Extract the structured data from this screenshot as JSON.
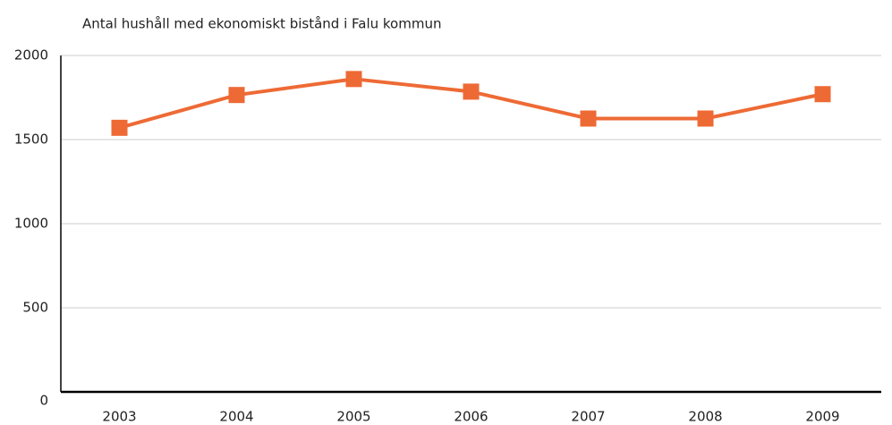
{
  "chart_data": {
    "type": "line",
    "title": "Antal hushåll med ekonomiskt bistånd i Falu kommun",
    "categories": [
      "2003",
      "2004",
      "2005",
      "2006",
      "2007",
      "2008",
      "2009"
    ],
    "series": [
      {
        "name": "Antal hushåll",
        "color": "#ee6a35",
        "values": [
          1570,
          1765,
          1860,
          1785,
          1625,
          1625,
          1770
        ]
      }
    ],
    "ylim": [
      0,
      2000
    ],
    "yticks": [
      0,
      500,
      1000,
      1500,
      2000
    ],
    "grid": true
  }
}
